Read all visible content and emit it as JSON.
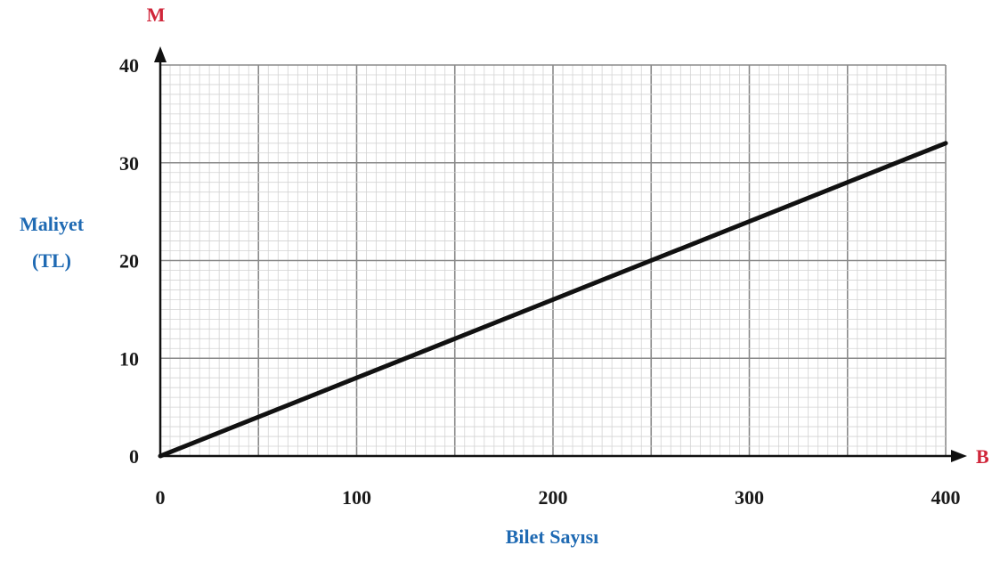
{
  "chart_data": {
    "type": "line",
    "x_axis_letter": "B",
    "y_axis_letter": "M",
    "xlabel": "Bilet Sayısı",
    "ylabel_lines": [
      "Maliyet",
      "(TL)"
    ],
    "xlim": [
      0,
      400
    ],
    "ylim": [
      0,
      40
    ],
    "x_ticks": [
      0,
      100,
      200,
      300,
      400
    ],
    "y_ticks": [
      0,
      10,
      20,
      30,
      40
    ],
    "grid": true,
    "series": [
      {
        "x": [
          0,
          400
        ],
        "y": [
          0,
          32
        ]
      }
    ]
  },
  "colors": {
    "axis_letter": "#d0263a",
    "axis_title": "#1f6ab3",
    "line": "#111111",
    "grid_major": "#8a8a8a",
    "grid_minor": "#d3d3d3"
  }
}
